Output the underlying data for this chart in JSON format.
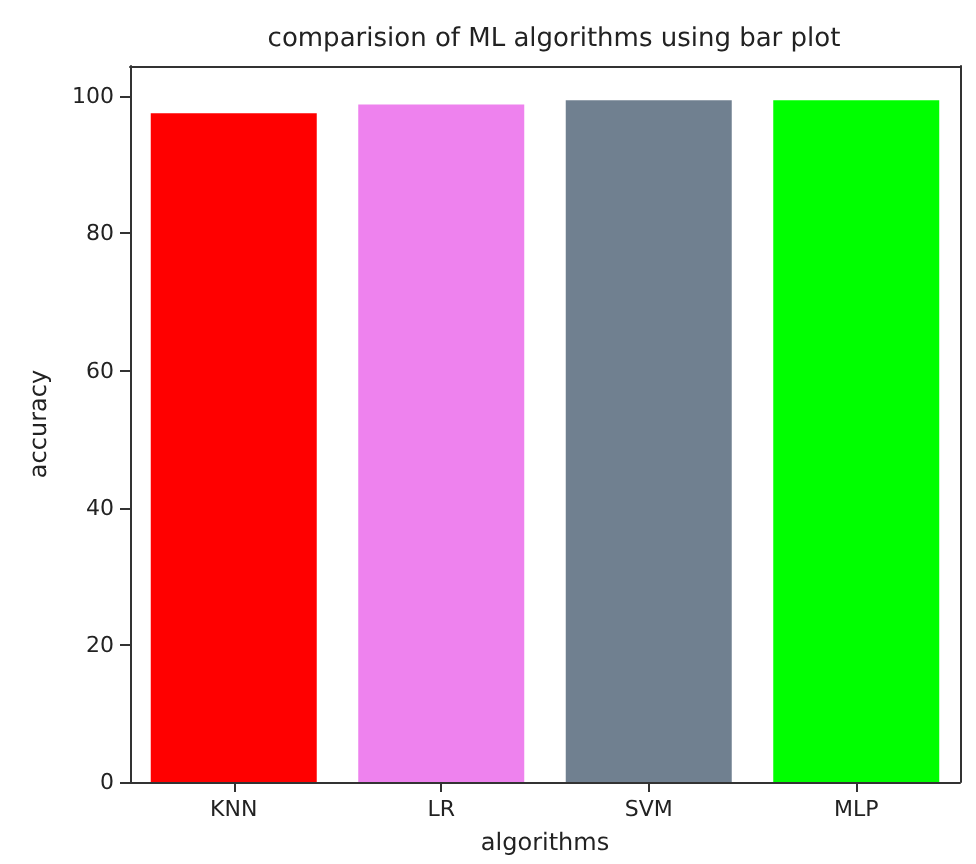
{
  "chart_data": {
    "type": "bar",
    "title": "comparision of ML algorithms using bar plot",
    "xlabel": "algorithms",
    "ylabel": "accuracy",
    "categories": [
      "KNN",
      "LR",
      "SVM",
      "MLP"
    ],
    "values": [
      97.5,
      98.8,
      99.4,
      99.4
    ],
    "colors": [
      "#ff0000",
      "#ee82ee",
      "#708090",
      "#00ff00"
    ],
    "ylim": [
      0,
      104.4
    ],
    "yticks": [
      0,
      20,
      40,
      60,
      80,
      100
    ],
    "grid": false
  }
}
